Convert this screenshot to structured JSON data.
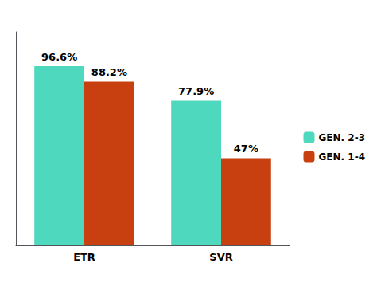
{
  "chart_data": {
    "type": "bar",
    "categories": [
      "ETR",
      "SVR"
    ],
    "series": [
      {
        "name": "GEN. 2-3",
        "color": "#4ED8BE",
        "values": [
          96.6,
          77.9
        ],
        "value_labels": [
          "96.6%",
          "77.9%"
        ]
      },
      {
        "name": "GEN. 1-4",
        "color": "#C94010",
        "values": [
          88.2,
          47.0
        ],
        "value_labels": [
          "88.2%",
          "47%"
        ]
      }
    ],
    "ylim": [
      0,
      115
    ],
    "data_labels": true,
    "tick_labels": "x",
    "grid": false,
    "legend": "right"
  }
}
